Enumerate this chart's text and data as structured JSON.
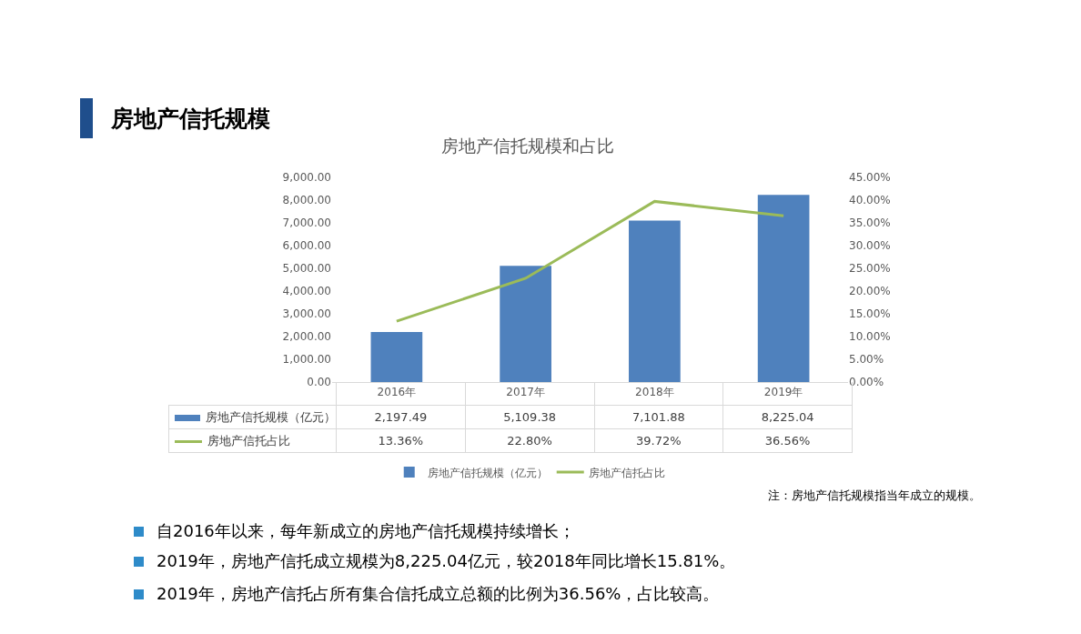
{
  "chart_data": {
    "type": "bar",
    "title": "房地产信托规模",
    "subtitle": "房地产信托规模和占比",
    "categories": [
      "2016年",
      "2017年",
      "2018年",
      "2019年"
    ],
    "series": [
      {
        "name": "房地产信托规模（亿元）",
        "color": "#4f81bd",
        "values": [
          2197.49,
          5109.38,
          7101.88,
          8225.04
        ],
        "value_labels": [
          "2,197.49",
          "5,109.38",
          "7,101.88",
          "8,225.04"
        ]
      },
      {
        "name": "房地产信托占比",
        "type": "line",
        "axis": "y2",
        "color": "#9bbb59",
        "line_style": "solid",
        "values": [
          13.36,
          22.8,
          39.72,
          36.56
        ],
        "value_labels": [
          "13.36%",
          "22.80%",
          "39.72%",
          "36.56%"
        ]
      }
    ],
    "ylim": [
      0,
      9000
    ],
    "yticks": [
      {
        "value": 0,
        "label": "0.00"
      },
      {
        "value": 1000,
        "label": "1,000.00"
      },
      {
        "value": 2000,
        "label": "2,000.00"
      },
      {
        "value": 3000,
        "label": "3,000.00"
      },
      {
        "value": 4000,
        "label": "4,000.00"
      },
      {
        "value": 5000,
        "label": "5,000.00"
      },
      {
        "value": 6000,
        "label": "6,000.00"
      },
      {
        "value": 7000,
        "label": "7,000.00"
      },
      {
        "value": 8000,
        "label": "8,000.00"
      },
      {
        "value": 9000,
        "label": "9,000.00"
      }
    ],
    "y2lim": [
      0,
      45
    ],
    "y2ticks": [
      {
        "value": 0,
        "label": "0.00%"
      },
      {
        "value": 5,
        "label": "5.00%"
      },
      {
        "value": 10,
        "label": "10.00%"
      },
      {
        "value": 15,
        "label": "15.00%"
      },
      {
        "value": 20,
        "label": "20.00%"
      },
      {
        "value": 25,
        "label": "25.00%"
      },
      {
        "value": 30,
        "label": "30.00%"
      },
      {
        "value": 35,
        "label": "35.00%"
      },
      {
        "value": 40,
        "label": "40.00%"
      },
      {
        "value": 45,
        "label": "45.00%"
      }
    ],
    "legend": "bottom",
    "annotations": [
      "注：房地产信托规模指当年成立的规模。",
      "自2016年以来，每年新成立的房地产信托规模持续增长；",
      "2019年，房地产信托成立规模为8,225.04亿元，较2018年同比增长15.81%。",
      "2019年，房地产信托占所有集合信托成立总额的比例为36.56%，占比较高。"
    ]
  }
}
